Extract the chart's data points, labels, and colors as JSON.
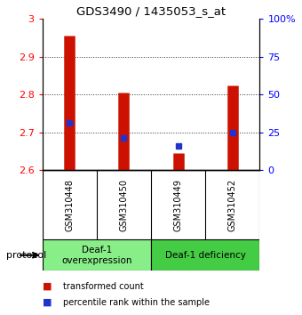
{
  "title": "GDS3490 / 1435053_s_at",
  "samples": [
    "GSM310448",
    "GSM310450",
    "GSM310449",
    "GSM310452"
  ],
  "bar_bottoms": [
    2.6,
    2.6,
    2.6,
    2.6
  ],
  "bar_tops": [
    2.955,
    2.805,
    2.645,
    2.825
  ],
  "blue_values": [
    2.725,
    2.685,
    2.665,
    2.7
  ],
  "bar_color": "#cc1100",
  "blue_color": "#2233cc",
  "ylim_left": [
    2.6,
    3.0
  ],
  "ylim_right": [
    0,
    100
  ],
  "yticks_left": [
    2.6,
    2.7,
    2.8,
    2.9,
    3.0
  ],
  "ytick_labels_left": [
    "2.6",
    "2.7",
    "2.8",
    "2.9",
    "3"
  ],
  "yticks_right": [
    0,
    25,
    50,
    75,
    100
  ],
  "ytick_labels_right": [
    "0",
    "25",
    "50",
    "75",
    "100%"
  ],
  "groups": [
    {
      "label": "Deaf-1\noverexpression",
      "color": "#88ee88"
    },
    {
      "label": "Deaf-1 deficiency",
      "color": "#44cc44"
    }
  ],
  "protocol_label": "protocol",
  "legend_items": [
    {
      "color": "#cc1100",
      "label": "transformed count"
    },
    {
      "color": "#2233cc",
      "label": "percentile rank within the sample"
    }
  ],
  "grid_color": "#333333",
  "background_color": "#ffffff",
  "sample_area_color": "#cccccc",
  "bar_linewidth": 9
}
